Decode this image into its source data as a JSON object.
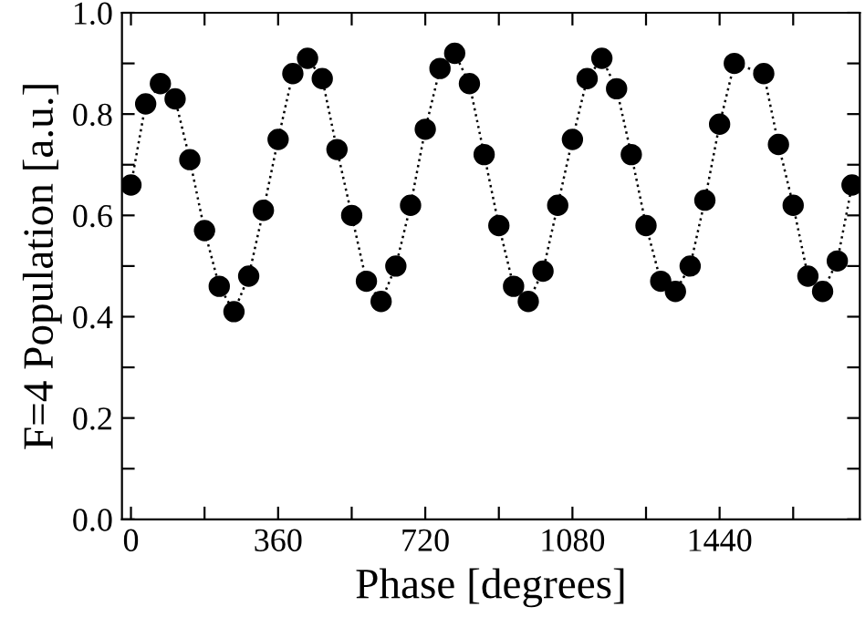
{
  "chart_data": {
    "type": "scatter",
    "xlabel": "Phase [degrees]",
    "ylabel": "F=4 Population [a.u.]",
    "x": [
      0,
      36,
      72,
      108,
      144,
      180,
      216,
      252,
      288,
      324,
      360,
      396,
      432,
      468,
      504,
      540,
      576,
      612,
      648,
      684,
      720,
      756,
      792,
      828,
      864,
      900,
      936,
      972,
      1008,
      1044,
      1080,
      1116,
      1152,
      1188,
      1224,
      1260,
      1296,
      1332,
      1368,
      1404,
      1440,
      1476,
      1548,
      1584,
      1620,
      1656,
      1692,
      1728,
      1764
    ],
    "series": [
      {
        "type": "line",
        "line_style": "dotted",
        "marker": "none",
        "color": "#000000",
        "values": [
          0.66,
          0.82,
          0.86,
          0.83,
          0.71,
          0.57,
          0.46,
          0.41,
          0.48,
          0.61,
          0.75,
          0.88,
          0.91,
          0.87,
          0.73,
          0.6,
          0.47,
          0.43,
          0.5,
          0.62,
          0.77,
          0.89,
          0.92,
          0.86,
          0.72,
          0.58,
          0.46,
          0.43,
          0.49,
          0.62,
          0.75,
          0.87,
          0.91,
          0.85,
          0.72,
          0.58,
          0.47,
          0.45,
          0.5,
          0.63,
          0.78,
          0.9,
          0.88,
          0.74,
          0.62,
          0.48,
          0.45,
          0.51,
          0.66
        ]
      },
      {
        "marker": "circle",
        "color": "#000000",
        "values": [
          0.66,
          0.82,
          0.86,
          0.83,
          0.71,
          0.57,
          0.46,
          0.41,
          0.48,
          0.61,
          0.75,
          0.88,
          0.91,
          0.87,
          0.73,
          0.6,
          0.47,
          0.43,
          0.5,
          0.62,
          0.77,
          0.89,
          0.92,
          0.86,
          0.72,
          0.58,
          0.46,
          0.43,
          0.49,
          0.62,
          0.75,
          0.87,
          0.91,
          0.85,
          0.72,
          0.58,
          0.47,
          0.45,
          0.5,
          0.63,
          0.78,
          0.9,
          0.88,
          0.74,
          0.62,
          0.48,
          0.45,
          0.51,
          0.66
        ]
      }
    ],
    "xlim": [
      -22,
      1783
    ],
    "ylim": [
      0,
      1.0
    ],
    "xticks": [
      0,
      {
        "value": 180,
        "label": null
      },
      360,
      {
        "value": 540,
        "label": null
      },
      720,
      {
        "value": 900,
        "label": null
      },
      1080,
      {
        "value": 1260,
        "label": null
      },
      1440,
      {
        "value": 1620,
        "label": null
      }
    ],
    "yticks": [
      {
        "value": 0,
        "label": "0.0"
      },
      {
        "value": 0.1,
        "label": null
      },
      {
        "value": 0.2,
        "label": "0.2"
      },
      {
        "value": 0.3,
        "label": null
      },
      {
        "value": 0.4,
        "label": "0.4"
      },
      {
        "value": 0.5,
        "label": null
      },
      {
        "value": 0.6,
        "label": "0.6"
      },
      {
        "value": 0.7,
        "label": null
      },
      {
        "value": 0.8,
        "label": "0.8"
      },
      {
        "value": 0.9,
        "label": null
      },
      {
        "value": 1.0,
        "label": "1.0"
      }
    ]
  }
}
